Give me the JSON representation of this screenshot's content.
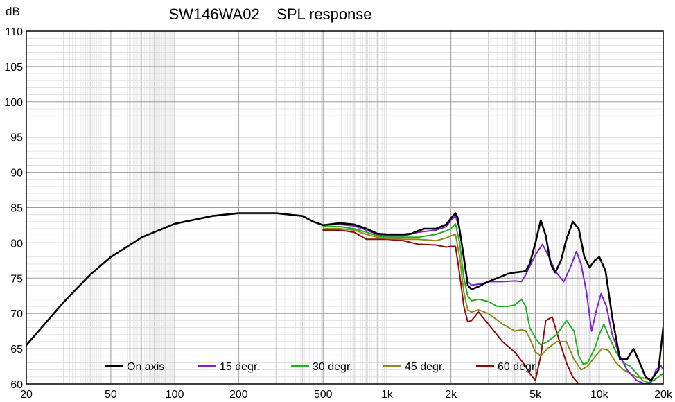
{
  "chart_data": {
    "type": "line",
    "title": "SW146WA02    SPL response",
    "ylabel": "dB",
    "xlabel": "",
    "xscale": "log",
    "xlim": [
      20,
      20000
    ],
    "ylim": [
      60,
      110
    ],
    "grid": true,
    "legend_position": "bottom",
    "x_tick_labels": [
      {
        "value": 20,
        "label": "20"
      },
      {
        "value": 50,
        "label": "50"
      },
      {
        "value": 100,
        "label": "100"
      },
      {
        "value": 200,
        "label": "200"
      },
      {
        "value": 500,
        "label": "500"
      },
      {
        "value": 1000,
        "label": "1k"
      },
      {
        "value": 2000,
        "label": "2k"
      },
      {
        "value": 5000,
        "label": "5k"
      },
      {
        "value": 10000,
        "label": "10k"
      },
      {
        "value": 20000,
        "label": "20k"
      }
    ],
    "y_ticks": [
      60,
      65,
      70,
      75,
      80,
      85,
      90,
      95,
      100,
      105,
      110
    ],
    "series": [
      {
        "name": "On axis",
        "color": "#000000",
        "points": [
          [
            20,
            65.5
          ],
          [
            30,
            71.6
          ],
          [
            40,
            75.5
          ],
          [
            50,
            78
          ],
          [
            70,
            80.8
          ],
          [
            100,
            82.7
          ],
          [
            150,
            83.8
          ],
          [
            200,
            84.2
          ],
          [
            300,
            84.2
          ],
          [
            400,
            83.8
          ],
          [
            450,
            83
          ],
          [
            500,
            82.5
          ],
          [
            600,
            82.8
          ],
          [
            700,
            82.6
          ],
          [
            800,
            82
          ],
          [
            900,
            81.3
          ],
          [
            1000,
            81.2
          ],
          [
            1200,
            81.2
          ],
          [
            1300,
            81.3
          ],
          [
            1400,
            81.7
          ],
          [
            1500,
            82
          ],
          [
            1700,
            82
          ],
          [
            1900,
            82.6
          ],
          [
            2000,
            83.5
          ],
          [
            2100,
            84.2
          ],
          [
            2150,
            83.6
          ],
          [
            2300,
            78
          ],
          [
            2400,
            74
          ],
          [
            2500,
            73.4
          ],
          [
            2700,
            73.8
          ],
          [
            3000,
            74.5
          ],
          [
            3300,
            75
          ],
          [
            3700,
            75.6
          ],
          [
            4000,
            75.8
          ],
          [
            4300,
            75.9
          ],
          [
            4500,
            76
          ],
          [
            4700,
            77
          ],
          [
            5000,
            80
          ],
          [
            5300,
            83.2
          ],
          [
            5600,
            81
          ],
          [
            5900,
            77
          ],
          [
            6200,
            75.8
          ],
          [
            6600,
            77.5
          ],
          [
            7000,
            80.5
          ],
          [
            7500,
            83
          ],
          [
            8000,
            82
          ],
          [
            8500,
            78
          ],
          [
            9000,
            76.5
          ],
          [
            9500,
            77.5
          ],
          [
            10000,
            78
          ],
          [
            10700,
            76
          ],
          [
            11500,
            69.5
          ],
          [
            12500,
            63.5
          ],
          [
            13500,
            63.5
          ],
          [
            14500,
            65
          ],
          [
            15500,
            63
          ],
          [
            16500,
            61
          ],
          [
            17500,
            60.5
          ],
          [
            19000,
            62
          ],
          [
            20000,
            68
          ]
        ]
      },
      {
        "name": "15 degr.",
        "color": "#7B1FD6",
        "points": [
          [
            500,
            82.5
          ],
          [
            600,
            82.6
          ],
          [
            700,
            82.4
          ],
          [
            800,
            81.8
          ],
          [
            900,
            81.2
          ],
          [
            1000,
            81
          ],
          [
            1200,
            81
          ],
          [
            1400,
            81.5
          ],
          [
            1700,
            81.8
          ],
          [
            1900,
            82.3
          ],
          [
            2000,
            83.2
          ],
          [
            2100,
            83.8
          ],
          [
            2200,
            82
          ],
          [
            2300,
            77.5
          ],
          [
            2400,
            74.5
          ],
          [
            2500,
            74
          ],
          [
            2800,
            74.2
          ],
          [
            3000,
            74.5
          ],
          [
            3500,
            74.5
          ],
          [
            4000,
            74.6
          ],
          [
            4300,
            74.5
          ],
          [
            4500,
            75.5
          ],
          [
            5000,
            78.3
          ],
          [
            5400,
            79.8
          ],
          [
            5800,
            78
          ],
          [
            6200,
            76
          ],
          [
            6800,
            74.5
          ],
          [
            7300,
            76.5
          ],
          [
            7800,
            78.8
          ],
          [
            8200,
            77
          ],
          [
            8700,
            73
          ],
          [
            9200,
            67.5
          ],
          [
            9700,
            70.5
          ],
          [
            10200,
            72.8
          ],
          [
            10800,
            71
          ],
          [
            11500,
            67
          ],
          [
            12500,
            64
          ],
          [
            13500,
            62
          ],
          [
            15000,
            60.5
          ],
          [
            16500,
            60
          ],
          [
            17500,
            60.2
          ],
          [
            18500,
            62
          ],
          [
            19500,
            62.6
          ],
          [
            20000,
            62
          ]
        ]
      },
      {
        "name": "30 degr.",
        "color": "#22B022",
        "points": [
          [
            500,
            82.3
          ],
          [
            600,
            82.3
          ],
          [
            700,
            82
          ],
          [
            800,
            81.5
          ],
          [
            900,
            81
          ],
          [
            1000,
            80.8
          ],
          [
            1200,
            80.8
          ],
          [
            1400,
            80.8
          ],
          [
            1700,
            81.2
          ],
          [
            1900,
            81.7
          ],
          [
            2000,
            82
          ],
          [
            2100,
            82.7
          ],
          [
            2200,
            80
          ],
          [
            2300,
            75
          ],
          [
            2400,
            72.5
          ],
          [
            2500,
            71.8
          ],
          [
            2700,
            72
          ],
          [
            3000,
            71.7
          ],
          [
            3300,
            71
          ],
          [
            3700,
            71
          ],
          [
            4000,
            71.2
          ],
          [
            4300,
            72
          ],
          [
            4500,
            71
          ],
          [
            4700,
            68
          ],
          [
            5000,
            66.5
          ],
          [
            5300,
            65.5
          ],
          [
            5700,
            66
          ],
          [
            6300,
            67
          ],
          [
            7000,
            69
          ],
          [
            7600,
            67.5
          ],
          [
            8000,
            64
          ],
          [
            8400,
            62.8
          ],
          [
            8800,
            63
          ],
          [
            9500,
            65
          ],
          [
            10000,
            67
          ],
          [
            10500,
            68.5
          ],
          [
            11000,
            67
          ],
          [
            12000,
            64.5
          ],
          [
            13000,
            63
          ],
          [
            14000,
            62.5
          ],
          [
            15000,
            61.5
          ],
          [
            16000,
            60.5
          ],
          [
            17000,
            60.2
          ],
          [
            18000,
            60.5
          ],
          [
            19000,
            61
          ],
          [
            20000,
            61.5
          ]
        ]
      },
      {
        "name": "45 degr.",
        "color": "#8A8C1A",
        "points": [
          [
            500,
            82
          ],
          [
            600,
            82
          ],
          [
            700,
            81.8
          ],
          [
            800,
            81.2
          ],
          [
            900,
            80.8
          ],
          [
            1000,
            80.6
          ],
          [
            1200,
            80.5
          ],
          [
            1400,
            80.5
          ],
          [
            1700,
            80.3
          ],
          [
            1900,
            80.7
          ],
          [
            2000,
            81
          ],
          [
            2100,
            81.2
          ],
          [
            2200,
            78
          ],
          [
            2300,
            73
          ],
          [
            2400,
            70.5
          ],
          [
            2500,
            70.2
          ],
          [
            2700,
            70.5
          ],
          [
            3000,
            70
          ],
          [
            3500,
            68.5
          ],
          [
            4000,
            67.5
          ],
          [
            4300,
            67.7
          ],
          [
            4500,
            67.5
          ],
          [
            4700,
            66.5
          ],
          [
            5000,
            64.5
          ],
          [
            5300,
            64
          ],
          [
            5700,
            65
          ],
          [
            6300,
            66
          ],
          [
            7000,
            66
          ],
          [
            7600,
            63.5
          ],
          [
            8200,
            62
          ],
          [
            8800,
            62.5
          ],
          [
            9500,
            63.8
          ],
          [
            10300,
            65
          ],
          [
            11000,
            64.8
          ],
          [
            12000,
            63
          ],
          [
            13000,
            62
          ],
          [
            14000,
            61.5
          ],
          [
            15000,
            61
          ],
          [
            16500,
            60.8
          ],
          [
            18000,
            60.5
          ],
          [
            19000,
            61
          ],
          [
            20000,
            61.5
          ]
        ]
      },
      {
        "name": "60 degr.",
        "color": "#8B0A0A",
        "points": [
          [
            500,
            81.8
          ],
          [
            600,
            81.8
          ],
          [
            700,
            81.5
          ],
          [
            800,
            80.5
          ],
          [
            900,
            80.5
          ],
          [
            1000,
            80.5
          ],
          [
            1200,
            80.3
          ],
          [
            1400,
            79.8
          ],
          [
            1700,
            79.7
          ],
          [
            1900,
            79.4
          ],
          [
            2000,
            79.5
          ],
          [
            2100,
            79.5
          ],
          [
            2200,
            75.5
          ],
          [
            2300,
            71
          ],
          [
            2400,
            68.8
          ],
          [
            2500,
            69
          ],
          [
            2700,
            70.2
          ],
          [
            3000,
            68.5
          ],
          [
            3500,
            66
          ],
          [
            4000,
            64.5
          ],
          [
            4500,
            62.5
          ],
          [
            4700,
            61.5
          ],
          [
            5000,
            60.5
          ],
          [
            5300,
            64
          ],
          [
            5600,
            69
          ],
          [
            6000,
            69.5
          ],
          [
            6500,
            66
          ],
          [
            7000,
            63
          ],
          [
            7500,
            61
          ],
          [
            8000,
            60
          ]
        ]
      }
    ]
  }
}
